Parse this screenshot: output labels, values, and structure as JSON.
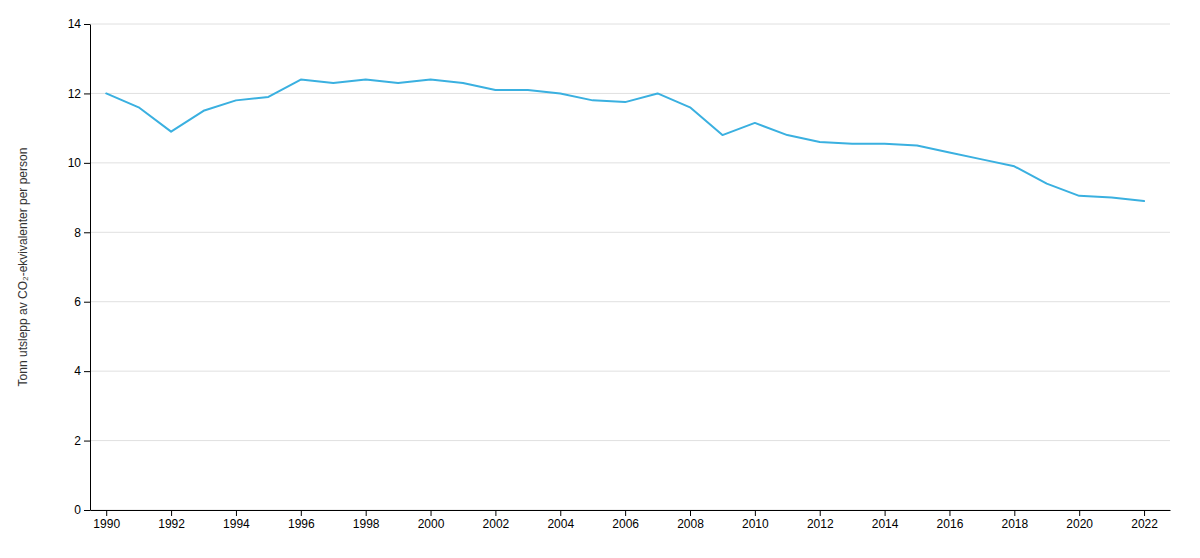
{
  "chart_data": {
    "type": "line",
    "y_label": "Tonn utslepp av CO₂-ekvivalenter per person",
    "x": [
      1990,
      1991,
      1992,
      1993,
      1994,
      1995,
      1996,
      1997,
      1998,
      1999,
      2000,
      2001,
      2002,
      2003,
      2004,
      2005,
      2006,
      2007,
      2008,
      2009,
      2010,
      2011,
      2012,
      2013,
      2014,
      2015,
      2016,
      2017,
      2018,
      2019,
      2020,
      2021,
      2022
    ],
    "values": [
      12.0,
      11.6,
      10.9,
      11.5,
      11.8,
      11.9,
      12.4,
      12.3,
      12.4,
      12.3,
      12.4,
      12.3,
      12.1,
      12.1,
      12.0,
      11.8,
      11.75,
      12.0,
      11.6,
      10.8,
      11.15,
      10.8,
      10.6,
      10.55,
      10.55,
      10.5,
      10.3,
      10.1,
      9.9,
      9.4,
      9.05,
      9.0,
      8.9
    ],
    "color": "#3ab0e0",
    "xlim": [
      1989.5,
      2022.8
    ],
    "xticks": [
      1990,
      1992,
      1994,
      1996,
      1998,
      2000,
      2002,
      2004,
      2006,
      2008,
      2010,
      2012,
      2014,
      2016,
      2018,
      2020,
      2022
    ],
    "ylim": [
      0,
      14
    ],
    "yticks": [
      0,
      2,
      4,
      6,
      8,
      10,
      12,
      14
    ],
    "grid": "y"
  }
}
